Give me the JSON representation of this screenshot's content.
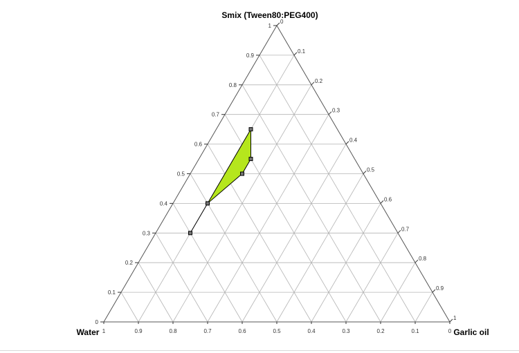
{
  "chart_data": {
    "type": "ternary",
    "axes": {
      "top": "Smix (Tween80:PEG400)",
      "left": "Water",
      "right": "Garlic oil"
    },
    "ticks": [
      "0",
      "0.1",
      "0.2",
      "0.3",
      "0.4",
      "0.5",
      "0.6",
      "0.7",
      "0.8",
      "0.9",
      "1"
    ],
    "grid": true,
    "region": {
      "fill": "#b5e61d",
      "points": [
        {
          "water": 0.6,
          "smix": 0.3,
          "garlic_oil": 0.1
        },
        {
          "water": 0.5,
          "smix": 0.4,
          "garlic_oil": 0.1
        },
        {
          "water": 0.35,
          "smix": 0.5,
          "garlic_oil": 0.15
        },
        {
          "water": 0.3,
          "smix": 0.55,
          "garlic_oil": 0.15
        },
        {
          "water": 0.25,
          "smix": 0.65,
          "garlic_oil": 0.1
        }
      ]
    }
  }
}
